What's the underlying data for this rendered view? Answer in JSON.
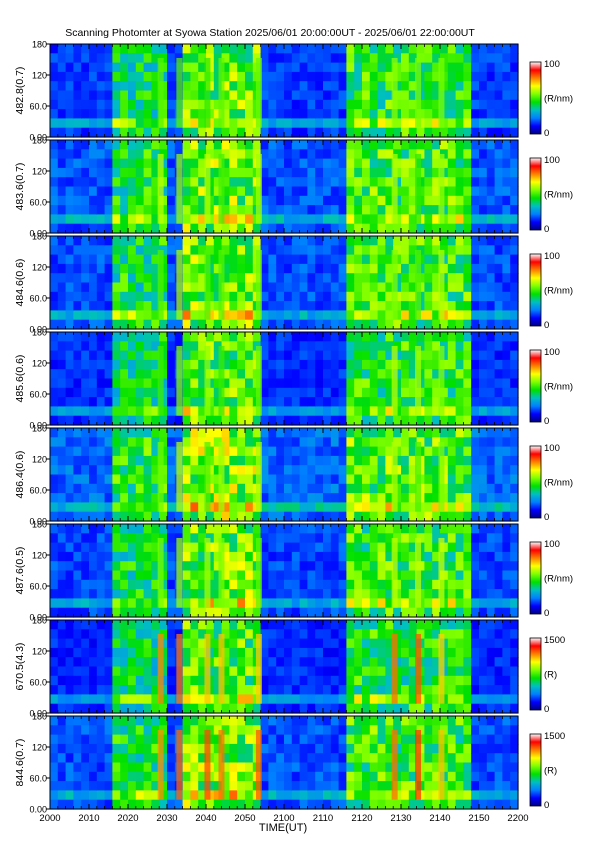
{
  "chart_data": {
    "type": "heatmap",
    "title": "Scanning Photomter at Syowa Station 2025/06/01 20:00:00UT - 2025/06/01 22:00:00UT",
    "xlabel": "TIME(UT)",
    "x_ticks": [
      "2000",
      "2010",
      "2020",
      "2030",
      "2040",
      "2050",
      "2100",
      "2110",
      "2120",
      "2130",
      "2140",
      "2150",
      "2200"
    ],
    "y_ticks": [
      "0.00",
      "60.0",
      "120",
      "180"
    ],
    "ylim": [
      0,
      180
    ],
    "colormap": [
      "#000080",
      "#0000ff",
      "#0080ff",
      "#00c0c0",
      "#00e000",
      "#80ff00",
      "#ffff00",
      "#ff8000",
      "#ff0000",
      "#ffffff"
    ],
    "panels": [
      {
        "ylabel": "482.8(0.7)",
        "cb_max": "100",
        "cb_min": "0",
        "cb_unit": "(R/nm)",
        "level": 0.45,
        "bright": [
          0.47,
          0.13
        ]
      },
      {
        "ylabel": "483.6(0.7)",
        "cb_max": "100",
        "cb_min": "0",
        "cb_unit": "(R/nm)",
        "level": 0.52,
        "bright": [
          0.47,
          0.13
        ]
      },
      {
        "ylabel": "484.6(0.6)",
        "cb_max": "100",
        "cb_min": "0",
        "cb_unit": "(R/nm)",
        "level": 0.5,
        "bright": [
          0.47,
          0.13
        ]
      },
      {
        "ylabel": "485.6(0.6)",
        "cb_max": "100",
        "cb_min": "0",
        "cb_unit": "(R/nm)",
        "level": 0.42,
        "bright": [
          0.47,
          0.13
        ]
      },
      {
        "ylabel": "486.4(0.6)",
        "cb_max": "100",
        "cb_min": "0",
        "cb_unit": "(R/nm)",
        "level": 0.58,
        "bright": [
          0.47,
          0.13
        ]
      },
      {
        "ylabel": "487.6(0.5)",
        "cb_max": "100",
        "cb_min": "0",
        "cb_unit": "(R/nm)",
        "level": 0.48,
        "bright": [
          0.47,
          0.13
        ]
      },
      {
        "ylabel": "670.5(4.3)",
        "cb_max": "1500",
        "cb_min": "0",
        "cb_unit": "(R)",
        "level": 0.4,
        "bright": [
          0.7,
          0.3
        ]
      },
      {
        "ylabel": "844.6(0.7)",
        "cb_max": "1500",
        "cb_min": "0",
        "cb_unit": "(R)",
        "level": 0.5,
        "bright": [
          0.72,
          0.3
        ]
      }
    ]
  }
}
